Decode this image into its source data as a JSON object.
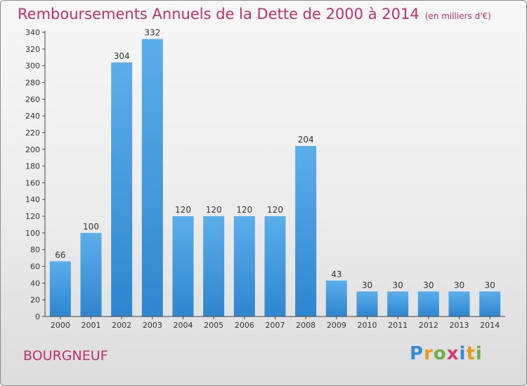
{
  "title": "Remboursements Annuels de la Dette de 2000 à 2014",
  "subtitle": "(en milliers d'€)",
  "commune": "BOURGNEUF",
  "logo": {
    "letters": [
      "P",
      "r",
      "o",
      "x",
      "i",
      "t",
      "i"
    ],
    "colors": [
      "#2e8fd8",
      "#e39a1a",
      "#6ab04c",
      "#d63a6e",
      "#2e8fd8",
      "#e39a1a",
      "#6ab04c"
    ]
  },
  "colors": {
    "bar_top": "#5aaeea",
    "bar_bottom": "#2f86cf",
    "title": "#c0306a"
  },
  "chart_data": {
    "type": "bar",
    "categories": [
      "2000",
      "2001",
      "2002",
      "2003",
      "2004",
      "2005",
      "2006",
      "2007",
      "2008",
      "2009",
      "2010",
      "2011",
      "2012",
      "2013",
      "2014"
    ],
    "values": [
      66,
      100,
      304,
      332,
      120,
      120,
      120,
      120,
      204,
      43,
      30,
      30,
      30,
      30,
      30
    ],
    "title": "Remboursements Annuels de la Dette de 2000 à 2014",
    "subtitle": "(en milliers d'€)",
    "xlabel": "",
    "ylabel": "",
    "ylim": [
      0,
      340
    ],
    "yticks": [
      0,
      20,
      40,
      60,
      80,
      100,
      120,
      140,
      160,
      180,
      200,
      220,
      240,
      260,
      280,
      300,
      320,
      340
    ],
    "grid": false
  }
}
